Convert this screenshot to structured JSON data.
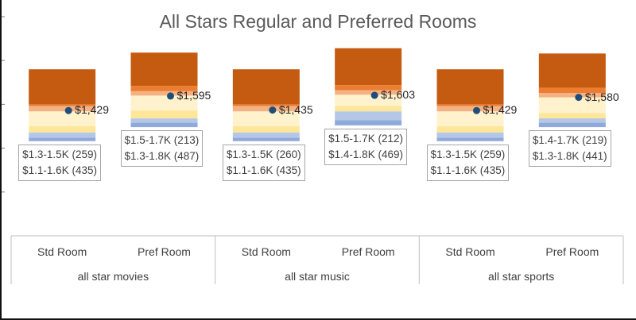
{
  "chart_data": {
    "type": "bar",
    "title": "All Stars Regular and Preferred Rooms",
    "groups": [
      "all star movies",
      "all star music",
      "all star sports"
    ],
    "categories": [
      "Std Room",
      "Pref Room",
      "Std Room",
      "Pref Room",
      "Std Room",
      "Pref Room"
    ],
    "average_price": [
      "$1,429",
      "$1,595",
      "$1,435",
      "$1,603",
      "$1,429",
      "$1,580"
    ],
    "average_value": [
      1429,
      1595,
      1435,
      1603,
      1429,
      1580
    ],
    "range_labels": [
      [
        "$1.3-1.5K (259)",
        "$1.1-1.6K (435)"
      ],
      [
        "$1.5-1.7K (213)",
        "$1.3-1.8K (487)"
      ],
      [
        "$1.3-1.5K (260)",
        "$1.1-1.6K (435)"
      ],
      [
        "$1.5-1.7K (212)",
        "$1.4-1.8K (469)"
      ],
      [
        "$1.3-1.5K (259)",
        "$1.1-1.6K (435)"
      ],
      [
        "$1.4-1.7K (219)",
        "$1.3-1.8K (441)"
      ]
    ],
    "stacks": [
      [
        1080,
        1120,
        1180,
        1250,
        1420,
        1480,
        1500,
        1900
      ],
      [
        1240,
        1290,
        1340,
        1430,
        1600,
        1650,
        1710,
        2090
      ],
      [
        1080,
        1120,
        1180,
        1250,
        1420,
        1480,
        1500,
        1900
      ],
      [
        1260,
        1320,
        1420,
        1480,
        1610,
        1660,
        1720,
        2140
      ],
      [
        1080,
        1120,
        1180,
        1250,
        1420,
        1480,
        1500,
        1900
      ],
      [
        1240,
        1290,
        1340,
        1400,
        1580,
        1630,
        1690,
        2080
      ]
    ],
    "band_colors": [
      "#8fa9dc",
      "#b4c7e7",
      "#ffe699",
      "#fff2cc",
      "#f4b183",
      "#ed7d31",
      "#c55a11"
    ],
    "marker_color": "#1f4e79",
    "ylim": [
      0,
      2500
    ],
    "grid": false
  }
}
